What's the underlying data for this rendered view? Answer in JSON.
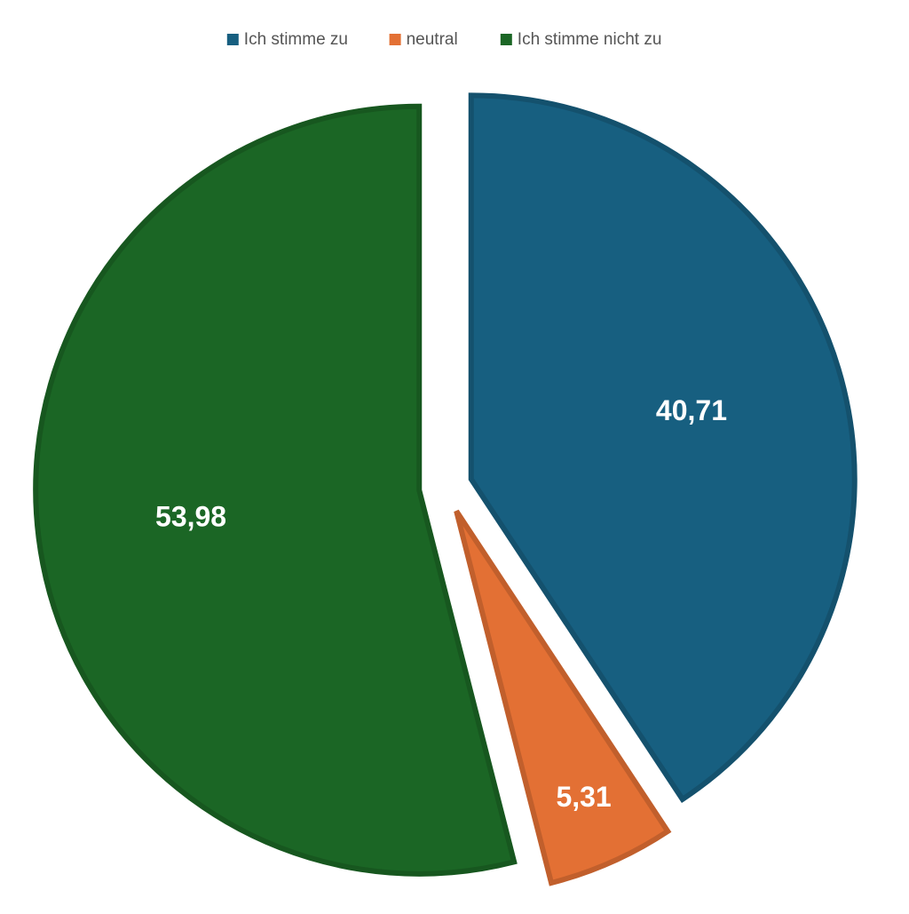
{
  "chart_data": {
    "type": "pie",
    "categories": [
      "Ich stimme zu",
      "neutral",
      "Ich stimme nicht zu"
    ],
    "values": [
      40.71,
      5.31,
      53.98
    ],
    "value_labels": [
      "40,71",
      "5,31",
      "53,98"
    ],
    "colors": [
      "#175f80",
      "#e37034",
      "#1b6625"
    ],
    "legend": "top"
  }
}
